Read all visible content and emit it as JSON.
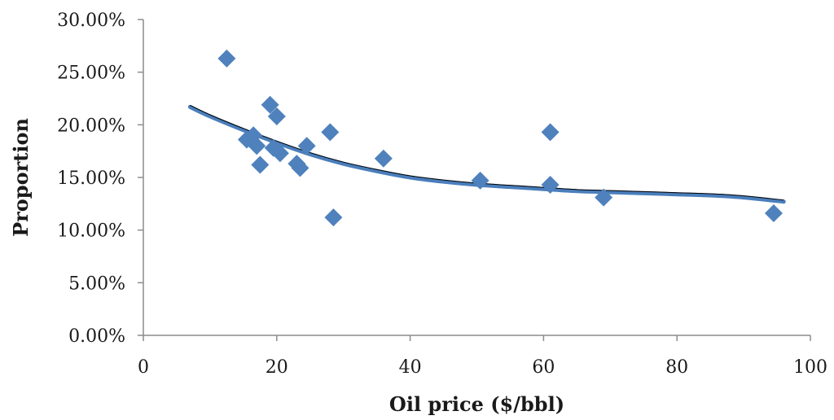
{
  "chart_data": {
    "type": "scatter",
    "title": "",
    "xlabel": "Oil price ($/bbl)",
    "ylabel": "Proportion",
    "xlim": [
      0,
      100
    ],
    "ylim": [
      0,
      0.3
    ],
    "x_ticks": [
      0,
      20,
      40,
      60,
      80,
      100
    ],
    "x_tick_labels": [
      "0",
      "20",
      "40",
      "60",
      "80",
      "100"
    ],
    "y_ticks": [
      0,
      0.05,
      0.1,
      0.15,
      0.2,
      0.25,
      0.3
    ],
    "y_tick_labels": [
      "0.00%",
      "5.00%",
      "10.00%",
      "15.00%",
      "20.00%",
      "25.00%",
      "30.00%"
    ],
    "grid": false,
    "legend": "none",
    "colors": {
      "marker": "#4f81bd",
      "trendline": "#4a7ebb",
      "thin_line": "#000000",
      "axis": "#8c8c8c"
    },
    "series": [
      {
        "marker": "diamond",
        "points": [
          [
            12.5,
            0.263
          ],
          [
            15.5,
            0.186
          ],
          [
            16.5,
            0.19
          ],
          [
            17.0,
            0.18
          ],
          [
            17.5,
            0.162
          ],
          [
            19.0,
            0.219
          ],
          [
            19.5,
            0.178
          ],
          [
            20.0,
            0.208
          ],
          [
            20.5,
            0.173
          ],
          [
            23.0,
            0.163
          ],
          [
            23.5,
            0.159
          ],
          [
            24.5,
            0.18
          ],
          [
            28.0,
            0.193
          ],
          [
            28.5,
            0.112
          ],
          [
            36.0,
            0.168
          ],
          [
            50.5,
            0.147
          ],
          [
            61.0,
            0.193
          ],
          [
            61.0,
            0.143
          ],
          [
            69.0,
            0.131
          ],
          [
            94.5,
            0.116
          ]
        ]
      }
    ],
    "trendline": {
      "points": [
        [
          7,
          0.217
        ],
        [
          10,
          0.208
        ],
        [
          15,
          0.195
        ],
        [
          20,
          0.183
        ],
        [
          25,
          0.172
        ],
        [
          30,
          0.163
        ],
        [
          35,
          0.156
        ],
        [
          40,
          0.15
        ],
        [
          45,
          0.146
        ],
        [
          50,
          0.143
        ],
        [
          55,
          0.141
        ],
        [
          60,
          0.139
        ],
        [
          65,
          0.137
        ],
        [
          70,
          0.136
        ],
        [
          75,
          0.135
        ],
        [
          80,
          0.134
        ],
        [
          85,
          0.133
        ],
        [
          90,
          0.131
        ],
        [
          96,
          0.127
        ]
      ]
    }
  }
}
